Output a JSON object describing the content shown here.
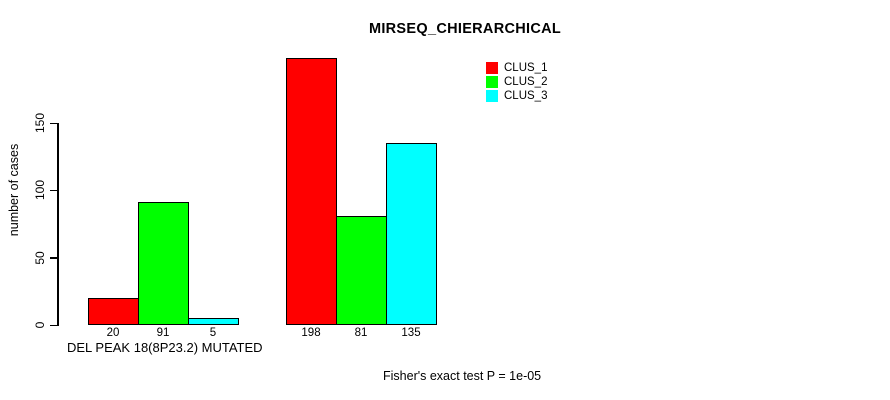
{
  "chart_data": {
    "type": "bar",
    "title": "MIRSEQ_CHIERARCHICAL",
    "ylabel": "number of cases",
    "xlabel": "DEL PEAK 18(8P23.2) MUTATED",
    "footnote": "Fisher's exact test P = 1e-05",
    "ylim": [
      0,
      150
    ],
    "yticks": [
      0,
      50,
      100,
      150
    ],
    "grid": false,
    "legend_position": "top-right",
    "legend_entries": [
      "CLUS_1",
      "CLUS_2",
      "CLUS_3"
    ],
    "series": [
      {
        "name": "CLUS_1",
        "color": "#ff0000",
        "values": [
          20,
          198
        ]
      },
      {
        "name": "CLUS_2",
        "color": "#00ff00",
        "values": [
          91,
          81
        ]
      },
      {
        "name": "CLUS_3",
        "color": "#00ffff",
        "values": [
          5,
          135
        ]
      }
    ],
    "bar_value_labels": [
      [
        "20",
        "91",
        "5"
      ],
      [
        "198",
        "81",
        "135"
      ]
    ],
    "colors": {
      "background": "#ffffff",
      "axis": "#000000",
      "bar_border": "#000000",
      "text": "#000000"
    }
  }
}
